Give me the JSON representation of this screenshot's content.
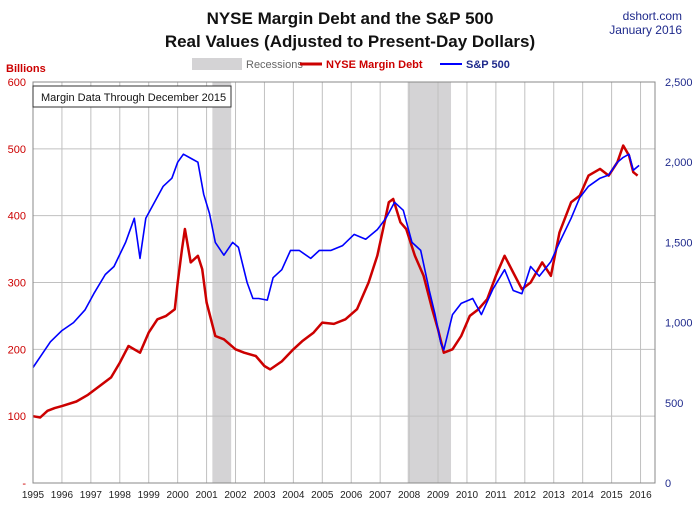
{
  "chart_data": {
    "type": "line",
    "title": "NYSE Margin Debt and the S&P 500",
    "subtitle": "Real Values (Adjusted to Present-Day Dollars)",
    "source": "dshort.com",
    "date_label": "January 2016",
    "ylabel_left": "Billions",
    "annotation": "Margin Data Through December 2015",
    "legend": {
      "placement": "top-center",
      "recessions_label": "Recessions",
      "margin_label": "NYSE Margin Debt",
      "sp500_label": "S&P 500"
    },
    "colors": {
      "margin": "#cc0000",
      "sp500": "#0000ff",
      "recession": "#d4d3d5",
      "left_axis_text": "#cc0000",
      "right_axis_text": "#1f2a8c",
      "grid": "#c0c0c0"
    },
    "grid": true,
    "x_ticks": [
      "1995",
      "1996",
      "1997",
      "1998",
      "1999",
      "2000",
      "2001",
      "2002",
      "2003",
      "2004",
      "2005",
      "2006",
      "2007",
      "2008",
      "2009",
      "2010",
      "2011",
      "2012",
      "2013",
      "2014",
      "2015",
      "2016"
    ],
    "xlim": [
      1995,
      2016.5
    ],
    "y_left_ticks": [
      "-",
      "100",
      "200",
      "300",
      "400",
      "500",
      "600"
    ],
    "y_left_lim": [
      0,
      600
    ],
    "y_right_ticks": [
      "0",
      "500",
      "1,000",
      "1,500",
      "2,000",
      "2,500"
    ],
    "y_right_lim": [
      0,
      2500
    ],
    "recessions": [
      [
        2001.2,
        2001.85
      ],
      [
        2007.95,
        2009.45
      ]
    ],
    "series": [
      {
        "name": "NYSE Margin Debt",
        "axis": "left",
        "x": [
          1995.0,
          1995.25,
          1995.5,
          1995.75,
          1996.0,
          1996.5,
          1996.9,
          1997.3,
          1997.7,
          1998.0,
          1998.3,
          1998.7,
          1999.0,
          1999.3,
          1999.6,
          1999.9,
          2000.0,
          2000.15,
          2000.25,
          2000.45,
          2000.7,
          2000.85,
          2001.0,
          2001.3,
          2001.6,
          2002.0,
          2002.3,
          2002.7,
          2003.0,
          2003.2,
          2003.6,
          2004.0,
          2004.3,
          2004.7,
          2005.0,
          2005.4,
          2005.8,
          2006.2,
          2006.6,
          2006.9,
          2007.1,
          2007.3,
          2007.45,
          2007.7,
          2007.9,
          2008.2,
          2008.5,
          2008.8,
          2009.0,
          2009.2,
          2009.5,
          2009.8,
          2010.1,
          2010.4,
          2010.7,
          2011.0,
          2011.3,
          2011.6,
          2011.9,
          2012.2,
          2012.6,
          2012.9,
          2013.2,
          2013.6,
          2013.9,
          2014.2,
          2014.6,
          2014.9,
          2015.2,
          2015.4,
          2015.6,
          2015.75,
          2015.9
        ],
        "values": [
          100,
          98,
          108,
          112,
          115,
          122,
          132,
          145,
          158,
          180,
          205,
          195,
          225,
          245,
          250,
          260,
          300,
          350,
          380,
          330,
          340,
          320,
          270,
          220,
          215,
          200,
          195,
          190,
          175,
          170,
          182,
          200,
          212,
          225,
          240,
          238,
          245,
          260,
          300,
          340,
          380,
          420,
          425,
          390,
          380,
          340,
          310,
          260,
          230,
          195,
          200,
          220,
          250,
          260,
          275,
          310,
          340,
          315,
          290,
          300,
          330,
          310,
          375,
          420,
          430,
          460,
          470,
          460,
          480,
          505,
          490,
          465,
          460
        ]
      },
      {
        "name": "S&P 500",
        "axis": "right",
        "x": [
          1995.0,
          1995.3,
          1995.6,
          1996.0,
          1996.4,
          1996.8,
          1997.1,
          1997.5,
          1997.8,
          1998.2,
          1998.5,
          1998.7,
          1998.9,
          1999.2,
          1999.5,
          1999.8,
          2000.0,
          2000.2,
          2000.5,
          2000.7,
          2000.9,
          2001.1,
          2001.3,
          2001.6,
          2001.9,
          2002.1,
          2002.4,
          2002.6,
          2002.8,
          2003.1,
          2003.3,
          2003.6,
          2003.9,
          2004.2,
          2004.6,
          2004.9,
          2005.3,
          2005.7,
          2006.1,
          2006.5,
          2006.9,
          2007.2,
          2007.5,
          2007.8,
          2008.1,
          2008.4,
          2008.7,
          2008.9,
          2009.1,
          2009.2,
          2009.5,
          2009.8,
          2010.2,
          2010.5,
          2010.9,
          2011.3,
          2011.6,
          2011.9,
          2012.2,
          2012.5,
          2012.9,
          2013.2,
          2013.6,
          2013.9,
          2014.2,
          2014.6,
          2014.9,
          2015.2,
          2015.4,
          2015.6,
          2015.75,
          2015.95
        ],
        "values": [
          720,
          800,
          880,
          950,
          1000,
          1080,
          1180,
          1300,
          1350,
          1500,
          1650,
          1400,
          1650,
          1750,
          1850,
          1900,
          2000,
          2050,
          2020,
          2000,
          1800,
          1680,
          1500,
          1420,
          1500,
          1470,
          1250,
          1150,
          1150,
          1140,
          1280,
          1330,
          1450,
          1450,
          1400,
          1450,
          1450,
          1480,
          1550,
          1520,
          1580,
          1650,
          1750,
          1700,
          1500,
          1450,
          1200,
          1050,
          870,
          830,
          1050,
          1120,
          1150,
          1050,
          1210,
          1330,
          1200,
          1180,
          1350,
          1290,
          1380,
          1500,
          1650,
          1780,
          1850,
          1900,
          1920,
          2000,
          2030,
          2050,
          1950,
          1980
        ]
      }
    ]
  }
}
